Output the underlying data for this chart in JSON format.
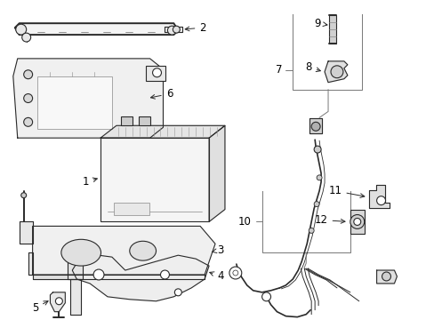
{
  "bg_color": "#ffffff",
  "line_color": "#2a2a2a",
  "text_color": "#000000",
  "fig_width": 4.89,
  "fig_height": 3.6,
  "dpi": 100,
  "label_fontsize": 8.5,
  "lw_main": 0.8,
  "lw_thick": 1.4,
  "lw_cable": 1.2
}
